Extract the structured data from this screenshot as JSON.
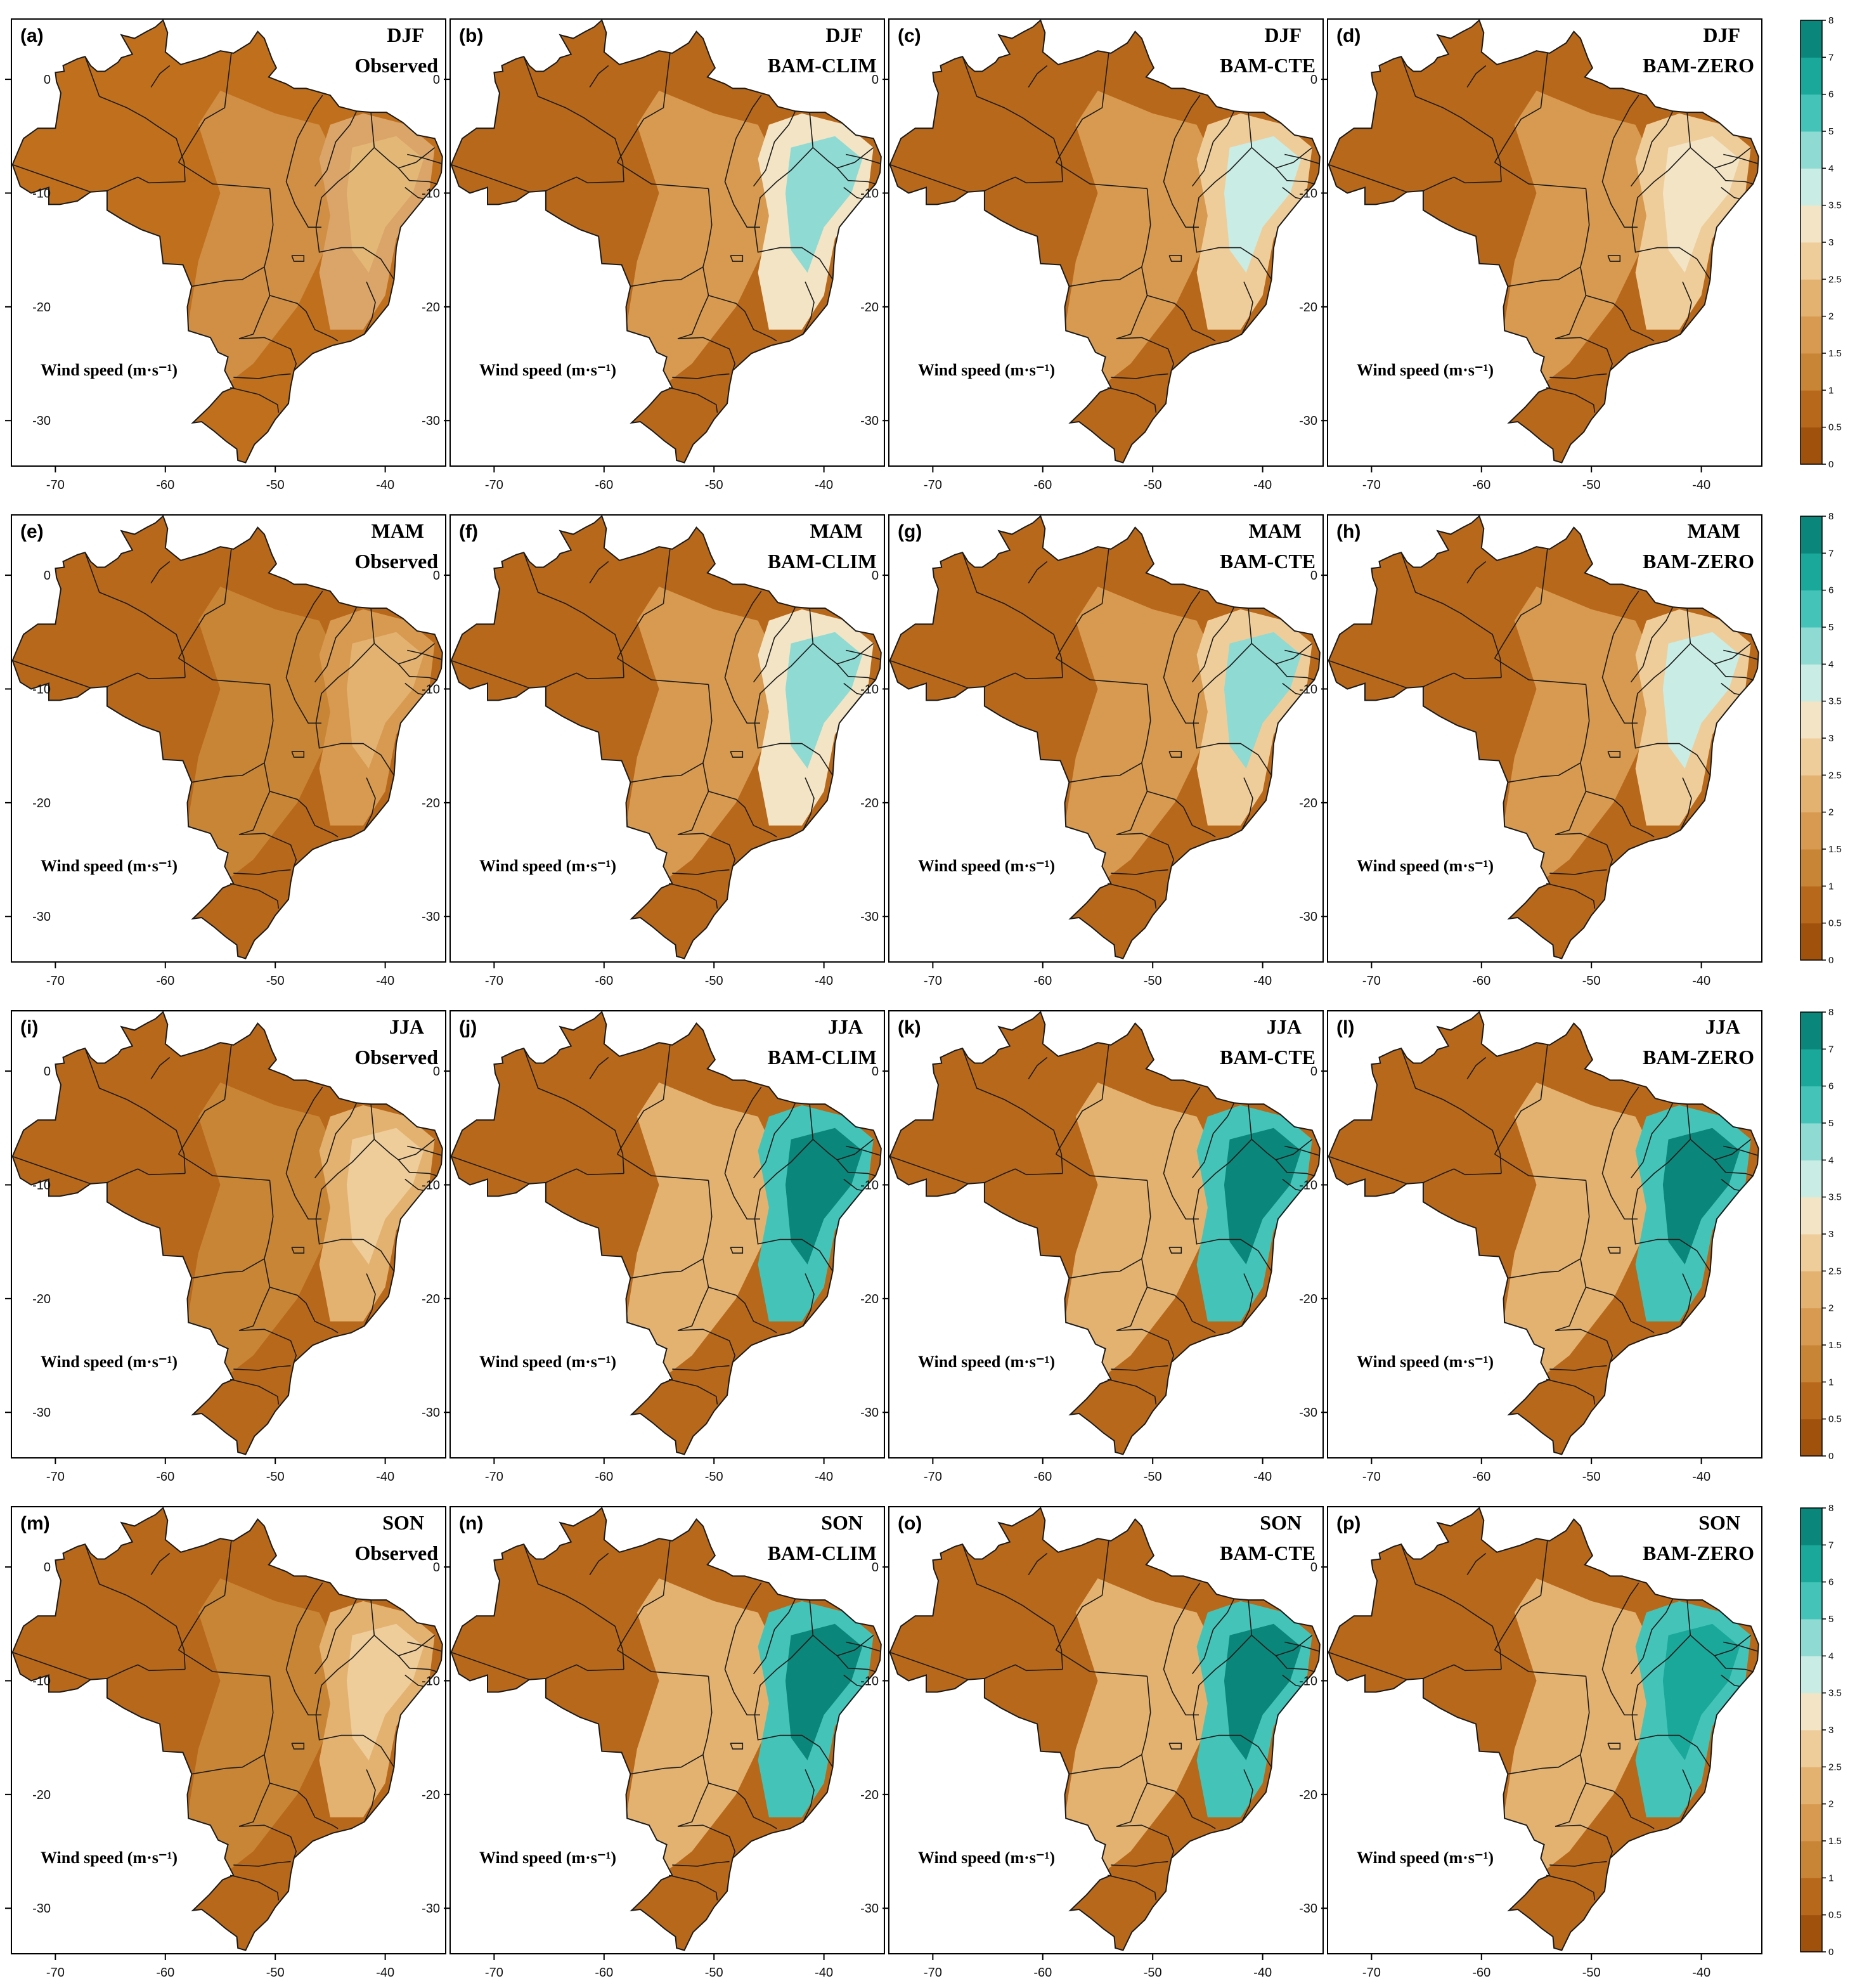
{
  "units_label": "Wind speed (m·s⁻¹)",
  "x_ticks": [
    "-70",
    "-60",
    "-50",
    "-40"
  ],
  "y_ticks": [
    "0",
    "-10",
    "-20",
    "-30"
  ],
  "colorbar": {
    "labels": [
      "0",
      "0.5",
      "1",
      "1.5",
      "2",
      "2.5",
      "3",
      "3.5",
      "4",
      "5",
      "6",
      "7",
      "8"
    ],
    "colors": [
      "#a0520d",
      "#b8681a",
      "#c88535",
      "#d79a50",
      "#e3b270",
      "#eecd9a",
      "#f2e4c4",
      "#c9ece4",
      "#8fdad2",
      "#44c4b8",
      "#1aa89b",
      "#0a877a",
      "#05665b"
    ]
  },
  "rows": [
    {
      "season": "DJF",
      "panels": [
        {
          "letter": "(a)",
          "model": "Observed",
          "dry": "#c0701d",
          "mid": "#d08f45",
          "wet": "#dba56a",
          "hot": "#e3b877"
        },
        {
          "letter": "(b)",
          "model": "BAM-CLIM",
          "dry": "#b8681a",
          "mid": "#d79a50",
          "wet": "#f2e4c4",
          "hot": "#8fdad2"
        },
        {
          "letter": "(c)",
          "model": "BAM-CTE",
          "dry": "#b8681a",
          "mid": "#d79a50",
          "wet": "#eecd9a",
          "hot": "#c9ece4"
        },
        {
          "letter": "(d)",
          "model": "BAM-ZERO",
          "dry": "#b8681a",
          "mid": "#d79a50",
          "wet": "#eecd9a",
          "hot": "#f2e4c4"
        }
      ]
    },
    {
      "season": "MAM",
      "panels": [
        {
          "letter": "(e)",
          "model": "Observed",
          "dry": "#b8681a",
          "mid": "#c88535",
          "wet": "#d79a50",
          "hot": "#e3b270"
        },
        {
          "letter": "(f)",
          "model": "BAM-CLIM",
          "dry": "#b8681a",
          "mid": "#d79a50",
          "wet": "#f2e4c4",
          "hot": "#8fdad2"
        },
        {
          "letter": "(g)",
          "model": "BAM-CTE",
          "dry": "#b8681a",
          "mid": "#d79a50",
          "wet": "#eecd9a",
          "hot": "#8fdad2"
        },
        {
          "letter": "(h)",
          "model": "BAM-ZERO",
          "dry": "#b8681a",
          "mid": "#d79a50",
          "wet": "#eecd9a",
          "hot": "#c9ece4"
        }
      ]
    },
    {
      "season": "JJA",
      "panels": [
        {
          "letter": "(i)",
          "model": "Observed",
          "dry": "#b8681a",
          "mid": "#c88535",
          "wet": "#e3b270",
          "hot": "#eecd9a"
        },
        {
          "letter": "(j)",
          "model": "BAM-CLIM",
          "dry": "#b8681a",
          "mid": "#e3b270",
          "wet": "#44c4b8",
          "hot": "#0a877a"
        },
        {
          "letter": "(k)",
          "model": "BAM-CTE",
          "dry": "#b8681a",
          "mid": "#e3b270",
          "wet": "#44c4b8",
          "hot": "#0a877a"
        },
        {
          "letter": "(l)",
          "model": "BAM-ZERO",
          "dry": "#b8681a",
          "mid": "#e3b270",
          "wet": "#44c4b8",
          "hot": "#0a877a"
        }
      ]
    },
    {
      "season": "SON",
      "panels": [
        {
          "letter": "(m)",
          "model": "Observed",
          "dry": "#b8681a",
          "mid": "#c88535",
          "wet": "#e3b270",
          "hot": "#eecd9a"
        },
        {
          "letter": "(n)",
          "model": "BAM-CLIM",
          "dry": "#b8681a",
          "mid": "#e3b270",
          "wet": "#44c4b8",
          "hot": "#0a877a"
        },
        {
          "letter": "(o)",
          "model": "BAM-CTE",
          "dry": "#b8681a",
          "mid": "#e3b270",
          "wet": "#44c4b8",
          "hot": "#0a877a"
        },
        {
          "letter": "(p)",
          "model": "BAM-ZERO",
          "dry": "#b8681a",
          "mid": "#e3b270",
          "wet": "#44c4b8",
          "hot": "#1aa89b"
        }
      ]
    }
  ]
}
